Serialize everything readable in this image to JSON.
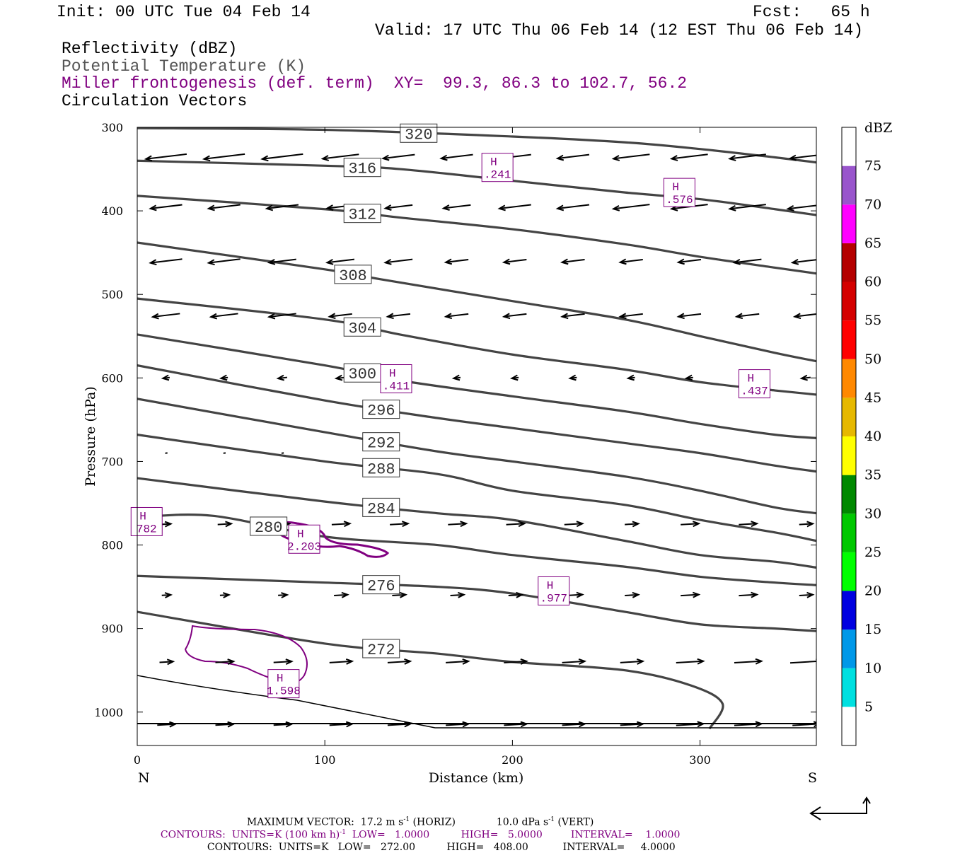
{
  "header": {
    "init": "Init: 00 UTC Tue 04 Feb 14",
    "fcst": "Fcst:   65 h",
    "valid": "Valid: 17 UTC Thu 06 Feb 14 (12 EST Thu 06 Feb 14)",
    "fields": [
      "Reflectivity (dBZ)",
      "Potential Temperature (K)",
      "Miller frontogenesis (def. term)",
      "Circulation Vectors"
    ],
    "xy": "XY=  99.3, 86.3 to 102.7, 56.2"
  },
  "colors": {
    "theta": "#444444",
    "frontogenesis": "#800080",
    "vectors": "#000000"
  },
  "chart_data": {
    "type": "cross-section",
    "xlabel": "Distance (km)",
    "ylabel": "Pressure (hPa)",
    "xlim": [
      0,
      362
    ],
    "ylim": [
      300,
      1040
    ],
    "x_ticks": [
      0,
      100,
      200,
      300
    ],
    "y_ticks": [
      300,
      400,
      500,
      600,
      700,
      800,
      900,
      1000
    ],
    "left_end_label": "N",
    "right_end_label": "S",
    "colorbar": {
      "title": "dBZ",
      "levels": [
        5,
        10,
        15,
        20,
        25,
        30,
        35,
        40,
        45,
        50,
        55,
        60,
        65,
        70,
        75
      ],
      "colors": [
        "#ffffff",
        "#00e0e0",
        "#0098e8",
        "#0000e0",
        "#00ff00",
        "#00c800",
        "#008800",
        "#ffff00",
        "#e6b800",
        "#ff8800",
        "#ff0000",
        "#d40000",
        "#b40000",
        "#ff00ff",
        "#9955cc",
        "#ffffff"
      ]
    },
    "theta_contours": [
      {
        "value": 320,
        "points": [
          [
            0,
            301
          ],
          [
            100,
            303
          ],
          [
            200,
            311
          ],
          [
            260,
            318
          ],
          [
            300,
            326
          ],
          [
            340,
            336
          ],
          [
            362,
            342
          ]
        ]
      },
      {
        "value": 316,
        "points": [
          [
            0,
            340
          ],
          [
            100,
            346
          ],
          [
            140,
            350
          ],
          [
            200,
            364
          ],
          [
            260,
            378
          ],
          [
            300,
            386
          ],
          [
            340,
            398
          ],
          [
            362,
            405
          ]
        ]
      },
      {
        "value": 312,
        "points": [
          [
            0,
            382
          ],
          [
            100,
            398
          ],
          [
            140,
            408
          ],
          [
            200,
            422
          ],
          [
            260,
            440
          ],
          [
            300,
            455
          ],
          [
            340,
            468
          ],
          [
            362,
            475
          ]
        ]
      },
      {
        "value": 308,
        "points": [
          [
            0,
            438
          ],
          [
            100,
            470
          ],
          [
            130,
            482
          ],
          [
            200,
            508
          ],
          [
            260,
            530
          ],
          [
            300,
            550
          ],
          [
            340,
            570
          ],
          [
            362,
            580
          ]
        ]
      },
      {
        "value": 304,
        "points": [
          [
            0,
            505
          ],
          [
            100,
            530
          ],
          [
            140,
            548
          ],
          [
            200,
            572
          ],
          [
            260,
            590
          ],
          [
            300,
            605
          ],
          [
            340,
            615
          ],
          [
            362,
            620
          ]
        ]
      },
      {
        "value": 300,
        "points": [
          [
            0,
            548
          ],
          [
            100,
            585
          ],
          [
            140,
            603
          ],
          [
            200,
            622
          ],
          [
            260,
            640
          ],
          [
            300,
            655
          ],
          [
            340,
            668
          ],
          [
            362,
            672
          ]
        ]
      },
      {
        "value": 296,
        "points": [
          [
            0,
            585
          ],
          [
            100,
            627
          ],
          [
            160,
            648
          ],
          [
            200,
            660
          ],
          [
            260,
            678
          ],
          [
            300,
            690
          ],
          [
            340,
            705
          ],
          [
            362,
            712
          ]
        ]
      },
      {
        "value": 292,
        "points": [
          [
            0,
            625
          ],
          [
            100,
            665
          ],
          [
            160,
            688
          ],
          [
            200,
            700
          ],
          [
            260,
            718
          ],
          [
            300,
            735
          ],
          [
            340,
            755
          ],
          [
            362,
            762
          ]
        ]
      },
      {
        "value": 288,
        "points": [
          [
            0,
            668
          ],
          [
            100,
            700
          ],
          [
            160,
            715
          ],
          [
            200,
            735
          ],
          [
            260,
            752
          ],
          [
            300,
            770
          ],
          [
            340,
            785
          ],
          [
            362,
            795
          ]
        ]
      },
      {
        "value": 284,
        "points": [
          [
            0,
            720
          ],
          [
            100,
            748
          ],
          [
            160,
            762
          ],
          [
            200,
            770
          ],
          [
            260,
            795
          ],
          [
            300,
            812
          ],
          [
            340,
            820
          ],
          [
            362,
            827
          ]
        ]
      },
      {
        "value": 280,
        "points": [
          [
            0,
            767
          ],
          [
            40,
            765
          ],
          [
            100,
            790
          ],
          [
            160,
            800
          ],
          [
            200,
            812
          ],
          [
            260,
            826
          ],
          [
            300,
            838
          ],
          [
            340,
            845
          ],
          [
            362,
            848
          ]
        ]
      },
      {
        "value": 276,
        "points": [
          [
            0,
            837
          ],
          [
            100,
            845
          ],
          [
            160,
            850
          ],
          [
            200,
            858
          ],
          [
            260,
            880
          ],
          [
            300,
            895
          ],
          [
            340,
            900
          ],
          [
            362,
            903
          ]
        ]
      },
      {
        "value": 272,
        "points": [
          [
            0,
            880
          ],
          [
            100,
            918
          ],
          [
            160,
            930
          ],
          [
            200,
            940
          ],
          [
            260,
            950
          ],
          [
            295,
            968
          ],
          [
            312,
            990
          ],
          [
            305,
            1020
          ]
        ]
      }
    ],
    "frontogenesis_maxima": [
      {
        "label": "H",
        "value": ".241",
        "x": 192,
        "p": 348
      },
      {
        "label": "H",
        "value": ".576",
        "x": 289,
        "p": 378
      },
      {
        "label": "H",
        "value": ".411",
        "x": 138,
        "p": 601
      },
      {
        "label": "H",
        "value": ".437",
        "x": 329,
        "p": 607
      },
      {
        "label": "H",
        "value": "782",
        "x": 5,
        "p": 772
      },
      {
        "label": "H",
        "value": "2.203",
        "x": 89,
        "p": 793
      },
      {
        "label": "H",
        "value": ".977",
        "x": 222,
        "p": 855
      },
      {
        "label": "H",
        "value": "1.598",
        "x": 78,
        "p": 966
      }
    ],
    "vectors": {
      "spacing_km": 31,
      "rows": [
        {
          "p": 335,
          "u": [
            -18,
            -18,
            -18,
            -16,
            -14,
            -14,
            -14,
            -14,
            -16,
            -16,
            -16,
            -14
          ]
        },
        {
          "p": 395,
          "u": [
            -14,
            -14,
            -14,
            -12,
            -12,
            -12,
            -14,
            -14,
            -16,
            -16,
            -16,
            -16
          ]
        },
        {
          "p": 460,
          "u": [
            -14,
            -14,
            -12,
            -12,
            -12,
            -10,
            -10,
            -10,
            -10,
            -10,
            -12,
            -12
          ]
        },
        {
          "p": 525,
          "u": [
            -12,
            -12,
            -12,
            -10,
            -10,
            -10,
            -10,
            -10,
            -10,
            -10,
            -10,
            -10
          ]
        },
        {
          "p": 600,
          "u": [
            -3,
            -3,
            -4,
            -4,
            -4,
            -3,
            -3,
            -3,
            -3,
            -3,
            -4,
            -4
          ]
        },
        {
          "p": 690,
          "u": [
            -1,
            -1,
            -1,
            0,
            0,
            0,
            0,
            0,
            0,
            0,
            0,
            0
          ]
        },
        {
          "p": 775,
          "u": [
            4,
            6,
            6,
            8,
            8,
            8,
            8,
            8,
            6,
            8,
            8,
            6
          ]
        },
        {
          "p": 860,
          "u": [
            4,
            4,
            4,
            6,
            6,
            6,
            6,
            8,
            6,
            8,
            8,
            6
          ]
        },
        {
          "p": 940,
          "u": [
            6,
            8,
            8,
            10,
            10,
            10,
            10,
            10,
            10,
            12,
            12,
            14
          ]
        },
        {
          "p": 1015,
          "u": [
            8,
            8,
            8,
            10,
            10,
            10,
            10,
            10,
            10,
            12,
            12,
            12
          ]
        }
      ]
    },
    "footer": {
      "max_vector_horiz": "17.2 m s",
      "max_vector_vert": "10.0 dPa s",
      "fronto_units": "UNITS=K (100 km h)",
      "fronto_low": "1.0000",
      "fronto_high": "5.0000",
      "fronto_interval": "1.0000",
      "theta_units": "UNITS=K",
      "theta_low": "272.00",
      "theta_high": "408.00",
      "theta_interval": "4.0000"
    }
  }
}
